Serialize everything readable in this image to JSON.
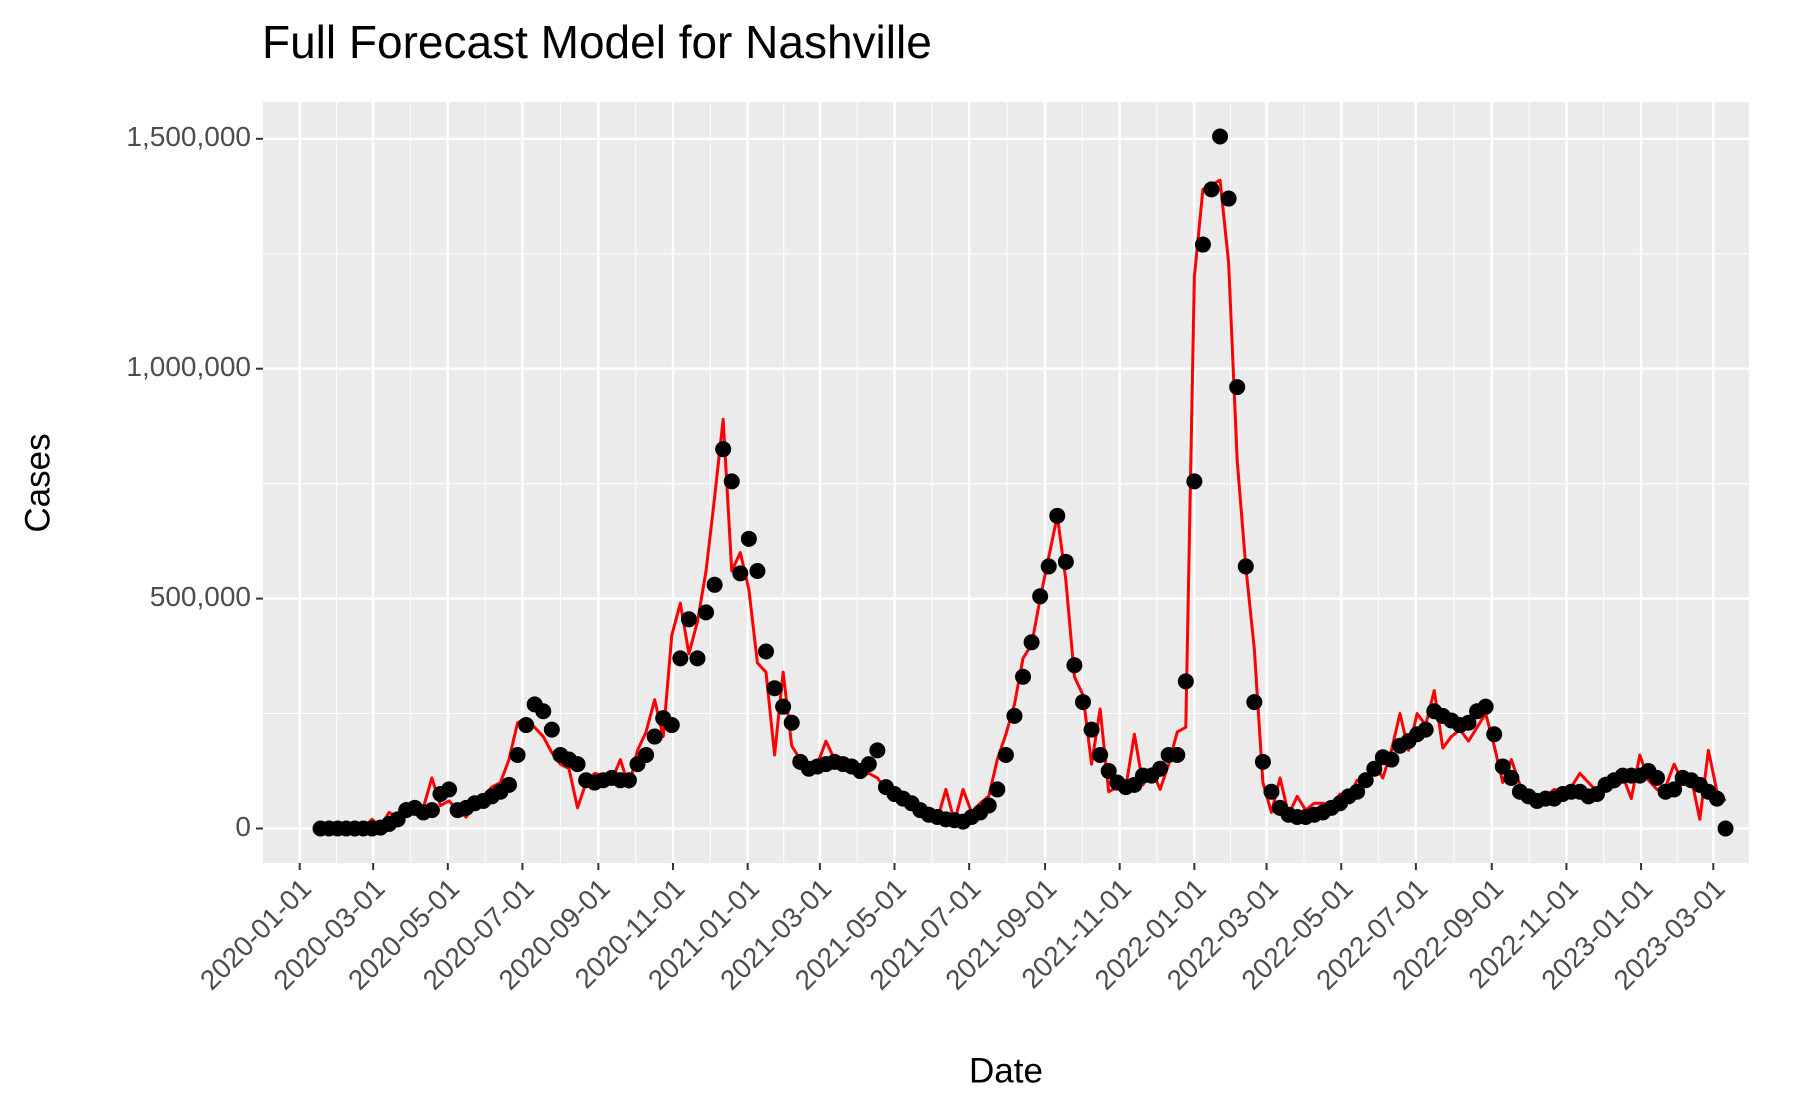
{
  "chart_data": {
    "type": "line",
    "title": "Full Forecast Model for Nashville",
    "xlabel": "Date",
    "ylabel": "Cases",
    "x": [
      "2020-01-18",
      "2020-01-25",
      "2020-02-01",
      "2020-02-08",
      "2020-02-15",
      "2020-02-22",
      "2020-02-29",
      "2020-03-07",
      "2020-03-14",
      "2020-03-21",
      "2020-03-28",
      "2020-04-04",
      "2020-04-11",
      "2020-04-18",
      "2020-04-25",
      "2020-05-02",
      "2020-05-09",
      "2020-05-16",
      "2020-05-23",
      "2020-05-30",
      "2020-06-06",
      "2020-06-13",
      "2020-06-20",
      "2020-06-27",
      "2020-07-04",
      "2020-07-11",
      "2020-07-18",
      "2020-07-25",
      "2020-08-01",
      "2020-08-08",
      "2020-08-15",
      "2020-08-22",
      "2020-08-29",
      "2020-09-05",
      "2020-09-12",
      "2020-09-19",
      "2020-09-26",
      "2020-10-03",
      "2020-10-10",
      "2020-10-17",
      "2020-10-24",
      "2020-10-31",
      "2020-11-07",
      "2020-11-14",
      "2020-11-21",
      "2020-11-28",
      "2020-12-05",
      "2020-12-12",
      "2020-12-19",
      "2020-12-26",
      "2021-01-02",
      "2021-01-09",
      "2021-01-16",
      "2021-01-23",
      "2021-01-30",
      "2021-02-06",
      "2021-02-13",
      "2021-02-20",
      "2021-02-27",
      "2021-03-06",
      "2021-03-13",
      "2021-03-20",
      "2021-03-27",
      "2021-04-03",
      "2021-04-10",
      "2021-04-17",
      "2021-04-24",
      "2021-05-01",
      "2021-05-08",
      "2021-05-15",
      "2021-05-22",
      "2021-05-29",
      "2021-06-05",
      "2021-06-12",
      "2021-06-19",
      "2021-06-26",
      "2021-07-03",
      "2021-07-10",
      "2021-07-17",
      "2021-07-24",
      "2021-07-31",
      "2021-08-07",
      "2021-08-14",
      "2021-08-21",
      "2021-08-28",
      "2021-09-04",
      "2021-09-11",
      "2021-09-18",
      "2021-09-25",
      "2021-10-02",
      "2021-10-09",
      "2021-10-16",
      "2021-10-23",
      "2021-10-30",
      "2021-11-06",
      "2021-11-13",
      "2021-11-20",
      "2021-11-27",
      "2021-12-04",
      "2021-12-11",
      "2021-12-18",
      "2021-12-25",
      "2022-01-01",
      "2022-01-08",
      "2022-01-15",
      "2022-01-22",
      "2022-01-29",
      "2022-02-05",
      "2022-02-12",
      "2022-02-19",
      "2022-02-26",
      "2022-03-05",
      "2022-03-12",
      "2022-03-19",
      "2022-03-26",
      "2022-04-02",
      "2022-04-09",
      "2022-04-16",
      "2022-04-23",
      "2022-04-30",
      "2022-05-07",
      "2022-05-14",
      "2022-05-21",
      "2022-05-28",
      "2022-06-04",
      "2022-06-11",
      "2022-06-18",
      "2022-06-25",
      "2022-07-02",
      "2022-07-09",
      "2022-07-16",
      "2022-07-23",
      "2022-07-30",
      "2022-08-06",
      "2022-08-13",
      "2022-08-20",
      "2022-08-27",
      "2022-09-03",
      "2022-09-10",
      "2022-09-17",
      "2022-09-24",
      "2022-10-01",
      "2022-10-08",
      "2022-10-15",
      "2022-10-22",
      "2022-10-29",
      "2022-11-05",
      "2022-11-12",
      "2022-11-19",
      "2022-11-26",
      "2022-12-03",
      "2022-12-10",
      "2022-12-17",
      "2022-12-24",
      "2022-12-31",
      "2023-01-07",
      "2023-01-14",
      "2023-01-21",
      "2023-01-28",
      "2023-02-04",
      "2023-02-11",
      "2023-02-18",
      "2023-02-25",
      "2023-03-04",
      "2023-03-11"
    ],
    "series": [
      {
        "mark": "line",
        "color": "#ff0000",
        "values": [
          0,
          0,
          0,
          0,
          0,
          0,
          20000,
          5000,
          35000,
          25000,
          55000,
          40000,
          45000,
          110000,
          50000,
          60000,
          40000,
          25000,
          55000,
          70000,
          90000,
          100000,
          150000,
          230000,
          240000,
          220000,
          200000,
          165000,
          140000,
          130000,
          45000,
          100000,
          120000,
          115000,
          105000,
          150000,
          90000,
          170000,
          210000,
          280000,
          200000,
          420000,
          490000,
          380000,
          450000,
          560000,
          720000,
          890000,
          560000,
          600000,
          520000,
          360000,
          340000,
          160000,
          340000,
          180000,
          150000,
          130000,
          140000,
          190000,
          150000,
          140000,
          130000,
          115000,
          120000,
          110000,
          85000,
          75000,
          60000,
          55000,
          40000,
          25000,
          20000,
          85000,
          15000,
          85000,
          35000,
          55000,
          70000,
          150000,
          205000,
          270000,
          370000,
          400000,
          500000,
          590000,
          680000,
          540000,
          330000,
          290000,
          140000,
          260000,
          80000,
          90000,
          90000,
          205000,
          95000,
          130000,
          85000,
          140000,
          210000,
          220000,
          1200000,
          1390000,
          1400000,
          1410000,
          1230000,
          800000,
          570000,
          390000,
          100000,
          35000,
          110000,
          30000,
          70000,
          40000,
          55000,
          55000,
          50000,
          75000,
          65000,
          105000,
          100000,
          140000,
          110000,
          170000,
          250000,
          170000,
          250000,
          225000,
          300000,
          175000,
          200000,
          215000,
          190000,
          220000,
          250000,
          180000,
          100000,
          150000,
          95000,
          80000,
          60000,
          70000,
          85000,
          80000,
          90000,
          120000,
          100000,
          80000,
          110000,
          90000,
          115000,
          65000,
          160000,
          105000,
          85000,
          90000,
          140000,
          100000,
          110000,
          20000,
          170000,
          80000,
          60000
        ]
      },
      {
        "mark": "point",
        "color": "#000000",
        "values": [
          0,
          0,
          0,
          0,
          0,
          0,
          0,
          2000,
          10000,
          20000,
          40000,
          45000,
          35000,
          40000,
          75000,
          85000,
          40000,
          45000,
          55000,
          60000,
          70000,
          80000,
          95000,
          160000,
          225000,
          270000,
          255000,
          215000,
          160000,
          150000,
          140000,
          105000,
          100000,
          105000,
          110000,
          105000,
          105000,
          140000,
          160000,
          200000,
          240000,
          225000,
          370000,
          455000,
          370000,
          470000,
          530000,
          825000,
          755000,
          555000,
          630000,
          560000,
          385000,
          305000,
          265000,
          230000,
          145000,
          130000,
          135000,
          140000,
          145000,
          140000,
          135000,
          125000,
          140000,
          170000,
          90000,
          75000,
          65000,
          55000,
          40000,
          30000,
          25000,
          20000,
          18000,
          15000,
          25000,
          35000,
          50000,
          85000,
          160000,
          245000,
          330000,
          405000,
          505000,
          570000,
          680000,
          580000,
          355000,
          275000,
          215000,
          160000,
          125000,
          100000,
          90000,
          95000,
          115000,
          115000,
          130000,
          160000,
          160000,
          320000,
          755000,
          1270000,
          1390000,
          1505000,
          1370000,
          960000,
          570000,
          275000,
          145000,
          80000,
          45000,
          30000,
          25000,
          25000,
          30000,
          35000,
          45000,
          55000,
          70000,
          80000,
          105000,
          130000,
          155000,
          150000,
          180000,
          190000,
          205000,
          215000,
          255000,
          245000,
          235000,
          225000,
          230000,
          255000,
          265000,
          205000,
          135000,
          110000,
          80000,
          70000,
          60000,
          65000,
          65000,
          75000,
          80000,
          80000,
          70000,
          75000,
          95000,
          105000,
          115000,
          115000,
          115000,
          125000,
          110000,
          80000,
          85000,
          110000,
          105000,
          95000,
          80000,
          65000,
          0
        ]
      }
    ],
    "xlim": [
      "2019-12-02",
      "2023-03-31"
    ],
    "xticks": [
      "2020-01-01",
      "2020-03-01",
      "2020-05-01",
      "2020-07-01",
      "2020-09-01",
      "2020-11-01",
      "2021-01-01",
      "2021-03-01",
      "2021-05-01",
      "2021-07-01",
      "2021-09-01",
      "2021-11-01",
      "2022-01-01",
      "2022-03-01",
      "2022-05-01",
      "2022-07-01",
      "2022-09-01",
      "2022-11-01",
      "2023-01-01",
      "2023-03-01"
    ],
    "ylim": [
      -75000,
      1580000
    ],
    "yticks": [
      0,
      {
        "value": 500000,
        "label": "500,000"
      },
      {
        "value": 1000000,
        "label": "1,000,000"
      },
      {
        "value": 1500000,
        "label": "1,500,000"
      }
    ],
    "grid": true
  }
}
